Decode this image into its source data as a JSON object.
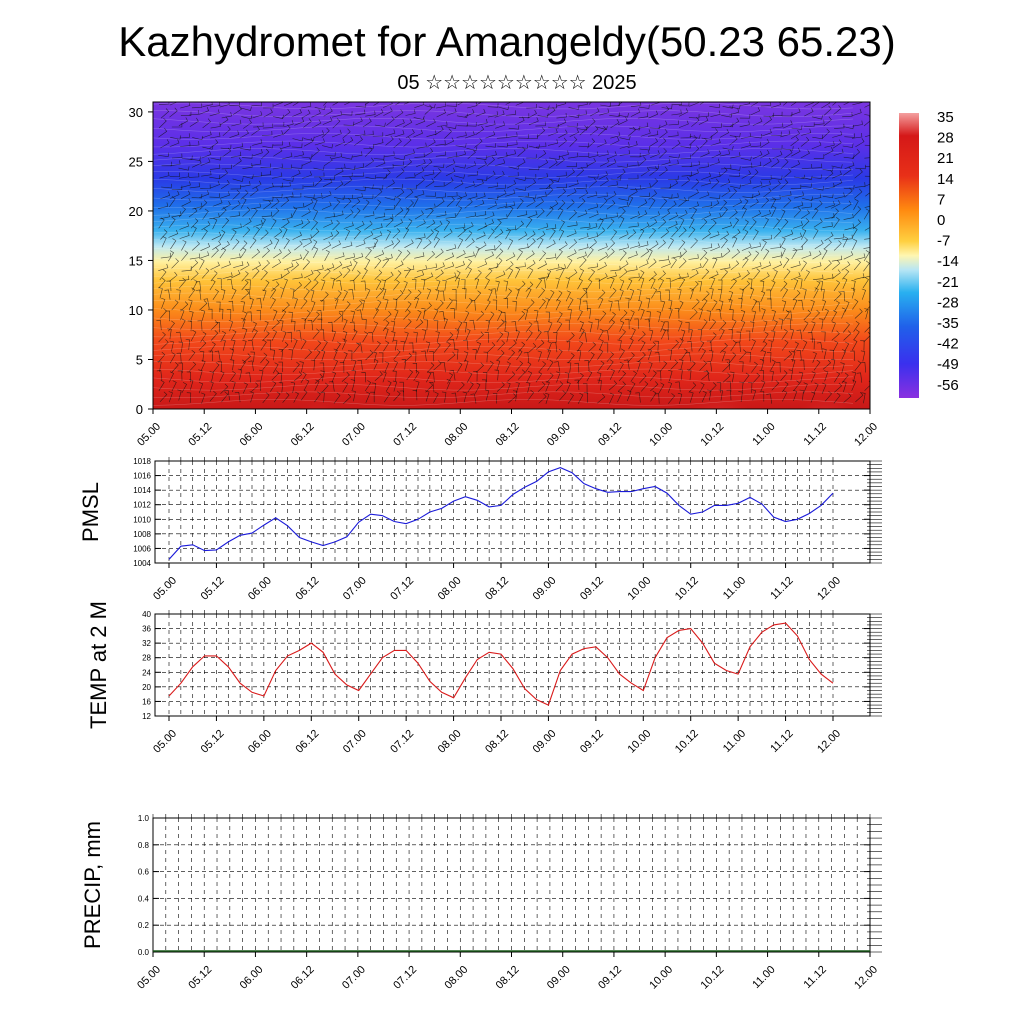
{
  "title": "Kazhydromet for Amangeldy(50.23 65.23)",
  "subtitle": "05 ☆☆☆☆☆☆☆☆☆ 2025",
  "time_labels": [
    "05.00",
    "05.12",
    "06.00",
    "06.12",
    "07.00",
    "07.12",
    "08.00",
    "08.12",
    "09.00",
    "09.12",
    "10.00",
    "10.12",
    "11.00",
    "11.12",
    "12.00"
  ],
  "colorbar": {
    "labels": [
      "35",
      "28",
      "21",
      "14",
      "7",
      "0",
      "-7",
      "-14",
      "-21",
      "-28",
      "-35",
      "-42",
      "-49",
      "-56"
    ],
    "colors": [
      "#8a2be2",
      "#6a3cf0",
      "#3b4cf5",
      "#1e7df0",
      "#19b0f0",
      "#a8e4f5",
      "#fff8b0",
      "#ffe066",
      "#ffc020",
      "#ff9a10",
      "#ff5a10",
      "#e81c10",
      "#d21414",
      "#f08080"
    ]
  },
  "chart_data": [
    {
      "type": "heatmap",
      "description_variable": "temperature cross-section with wind barbs",
      "ylim": [
        0,
        31
      ],
      "yticks": [
        0,
        5,
        10,
        15,
        20,
        25,
        30
      ],
      "x_labels_ref": "time_labels",
      "bands": [
        {
          "z": [
            0,
            5
          ],
          "value": 28
        },
        {
          "z": [
            5,
            10
          ],
          "value": 21
        },
        {
          "z": [
            10,
            15
          ],
          "value": 7
        },
        {
          "z": [
            15,
            17
          ],
          "value": -7
        },
        {
          "z": [
            17,
            20
          ],
          "value": -21
        },
        {
          "z": [
            20,
            23
          ],
          "value": -35
        },
        {
          "z": [
            23,
            27
          ],
          "value": -49
        },
        {
          "z": [
            27,
            31
          ],
          "value": -56
        }
      ]
    },
    {
      "type": "line",
      "ylabel": "PMSL",
      "ylim": [
        1004,
        1018
      ],
      "yticks": [
        1004,
        1006,
        1008,
        1010,
        1012,
        1014,
        1016,
        1018
      ],
      "color": "#1a1ad9",
      "x": [
        0,
        1,
        2,
        3,
        4,
        5,
        6,
        7,
        8,
        9,
        10,
        11,
        12,
        13,
        14,
        15,
        16,
        17,
        18,
        19,
        20,
        21,
        22,
        23,
        24,
        25,
        26,
        27,
        28,
        29,
        30,
        31,
        32,
        33,
        34,
        35,
        36,
        37,
        38,
        39,
        40,
        41,
        42,
        43,
        44,
        45,
        46,
        47,
        48,
        49,
        50,
        51,
        52,
        53,
        54,
        55,
        56
      ],
      "values": [
        1004.5,
        1006.3,
        1006.5,
        1005.7,
        1005.8,
        1006.9,
        1007.8,
        1008.1,
        1009.2,
        1010.2,
        1009.1,
        1007.5,
        1006.9,
        1006.4,
        1006.9,
        1007.6,
        1009.6,
        1010.7,
        1010.5,
        1009.7,
        1009.4,
        1010.0,
        1011.0,
        1011.5,
        1012.5,
        1013.1,
        1012.6,
        1011.7,
        1011.9,
        1013.4,
        1014.4,
        1015.2,
        1016.5,
        1017.1,
        1016.4,
        1014.9,
        1014.2,
        1013.7,
        1013.8,
        1013.8,
        1014.2,
        1014.5,
        1013.6,
        1011.9,
        1010.7,
        1011.0,
        1011.9,
        1011.9,
        1012.2,
        1013.0,
        1012.1,
        1010.3,
        1009.7,
        1010.0,
        1010.8,
        1011.9,
        1013.6
      ]
    },
    {
      "type": "line",
      "ylabel": "TEMP at 2 M",
      "ylim": [
        12,
        40
      ],
      "yticks": [
        12,
        16,
        20,
        24,
        28,
        32,
        36,
        40
      ],
      "color": "#d91a1a",
      "x": [
        0,
        1,
        2,
        3,
        4,
        5,
        6,
        7,
        8,
        9,
        10,
        11,
        12,
        13,
        14,
        15,
        16,
        17,
        18,
        19,
        20,
        21,
        22,
        23,
        24,
        25,
        26,
        27,
        28,
        29,
        30,
        31,
        32,
        33,
        34,
        35,
        36,
        37,
        38,
        39,
        40,
        41,
        42,
        43,
        44,
        45,
        46,
        47,
        48,
        49,
        50,
        51,
        52,
        53,
        54,
        55,
        56
      ],
      "values": [
        17.5,
        21.0,
        25.5,
        28.5,
        28.5,
        25.5,
        21.0,
        18.5,
        17.5,
        24.5,
        28.5,
        30.0,
        32.0,
        29.5,
        23.5,
        20.5,
        19.0,
        23.5,
        28.0,
        30.0,
        30.0,
        26.5,
        21.5,
        18.5,
        17.0,
        22.5,
        27.5,
        29.5,
        29.0,
        25.0,
        19.5,
        16.5,
        15.0,
        24.5,
        29.0,
        30.5,
        31.0,
        28.0,
        23.5,
        21.0,
        19.0,
        28.0,
        33.5,
        35.5,
        36.0,
        32.0,
        26.5,
        24.5,
        23.5,
        31.0,
        35.0,
        37.0,
        37.5,
        34.0,
        27.5,
        23.5,
        21.0
      ]
    },
    {
      "type": "line",
      "ylabel": "PRECIP, mm",
      "ylim": [
        0.0,
        1.0
      ],
      "ytick_labels": [
        "0.0",
        "0.2",
        "0.4",
        "0.6",
        "0.8",
        "1.0"
      ],
      "color": "#1a5a1a",
      "values": "all 0.0"
    }
  ]
}
